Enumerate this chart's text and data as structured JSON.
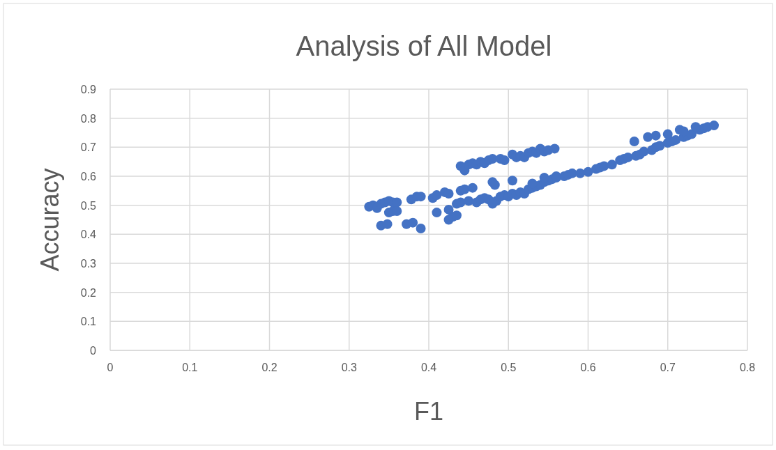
{
  "chart_data": {
    "type": "scatter",
    "title": "Analysis of All Model",
    "xlabel": "F1",
    "ylabel": "Accuracy",
    "xlim": [
      0,
      0.8
    ],
    "xticks": [
      0,
      0.1,
      0.2,
      0.3,
      0.4,
      0.5,
      0.6,
      0.7,
      0.8
    ],
    "ylim": [
      0,
      0.9
    ],
    "yticks": [
      0,
      0.1,
      0.2,
      0.3,
      0.4,
      0.5,
      0.6,
      0.7,
      0.8,
      0.9
    ],
    "grid": true,
    "marker": "circle",
    "series": [
      {
        "color": "#4472c4",
        "x": [
          0.44,
          0.445,
          0.45,
          0.455,
          0.46,
          0.465,
          0.47,
          0.475,
          0.48,
          0.49,
          0.495,
          0.505,
          0.51,
          0.515,
          0.52,
          0.525,
          0.53,
          0.535,
          0.54,
          0.545,
          0.55,
          0.558,
          0.325,
          0.33,
          0.335,
          0.34,
          0.345,
          0.35,
          0.355,
          0.36,
          0.35,
          0.355,
          0.36,
          0.34,
          0.348,
          0.372,
          0.38,
          0.39,
          0.378,
          0.385,
          0.39,
          0.405,
          0.41,
          0.42,
          0.425,
          0.41,
          0.425,
          0.43,
          0.435,
          0.425,
          0.435,
          0.44,
          0.445,
          0.455,
          0.48,
          0.483,
          0.505,
          0.44,
          0.45,
          0.46,
          0.465,
          0.47,
          0.475,
          0.48,
          0.485,
          0.49,
          0.495,
          0.5,
          0.505,
          0.51,
          0.515,
          0.52,
          0.525,
          0.53,
          0.535,
          0.54,
          0.545,
          0.55,
          0.555,
          0.56,
          0.57,
          0.575,
          0.58,
          0.59,
          0.6,
          0.61,
          0.615,
          0.62,
          0.63,
          0.64,
          0.645,
          0.65,
          0.66,
          0.665,
          0.67,
          0.68,
          0.685,
          0.69,
          0.7,
          0.705,
          0.71,
          0.72,
          0.725,
          0.73,
          0.74,
          0.745,
          0.75,
          0.758,
          0.658,
          0.675,
          0.685,
          0.7,
          0.715,
          0.72,
          0.735,
          0.53,
          0.545,
          0.56
        ],
        "values": [
          0.635,
          0.62,
          0.64,
          0.645,
          0.64,
          0.65,
          0.645,
          0.655,
          0.66,
          0.66,
          0.655,
          0.675,
          0.665,
          0.67,
          0.665,
          0.68,
          0.685,
          0.68,
          0.695,
          0.685,
          0.69,
          0.695,
          0.495,
          0.5,
          0.49,
          0.505,
          0.51,
          0.515,
          0.51,
          0.51,
          0.475,
          0.48,
          0.48,
          0.43,
          0.435,
          0.435,
          0.44,
          0.42,
          0.52,
          0.53,
          0.53,
          0.525,
          0.535,
          0.545,
          0.54,
          0.475,
          0.45,
          0.46,
          0.465,
          0.485,
          0.505,
          0.55,
          0.555,
          0.56,
          0.58,
          0.57,
          0.585,
          0.51,
          0.515,
          0.51,
          0.52,
          0.525,
          0.52,
          0.505,
          0.515,
          0.53,
          0.535,
          0.53,
          0.54,
          0.535,
          0.545,
          0.54,
          0.555,
          0.56,
          0.565,
          0.57,
          0.58,
          0.585,
          0.59,
          0.595,
          0.6,
          0.605,
          0.61,
          0.61,
          0.615,
          0.625,
          0.63,
          0.635,
          0.64,
          0.655,
          0.66,
          0.665,
          0.67,
          0.675,
          0.685,
          0.69,
          0.7,
          0.705,
          0.715,
          0.72,
          0.725,
          0.735,
          0.74,
          0.745,
          0.76,
          0.765,
          0.77,
          0.775,
          0.72,
          0.735,
          0.74,
          0.745,
          0.76,
          0.755,
          0.77,
          0.575,
          0.595,
          0.6
        ]
      }
    ]
  }
}
